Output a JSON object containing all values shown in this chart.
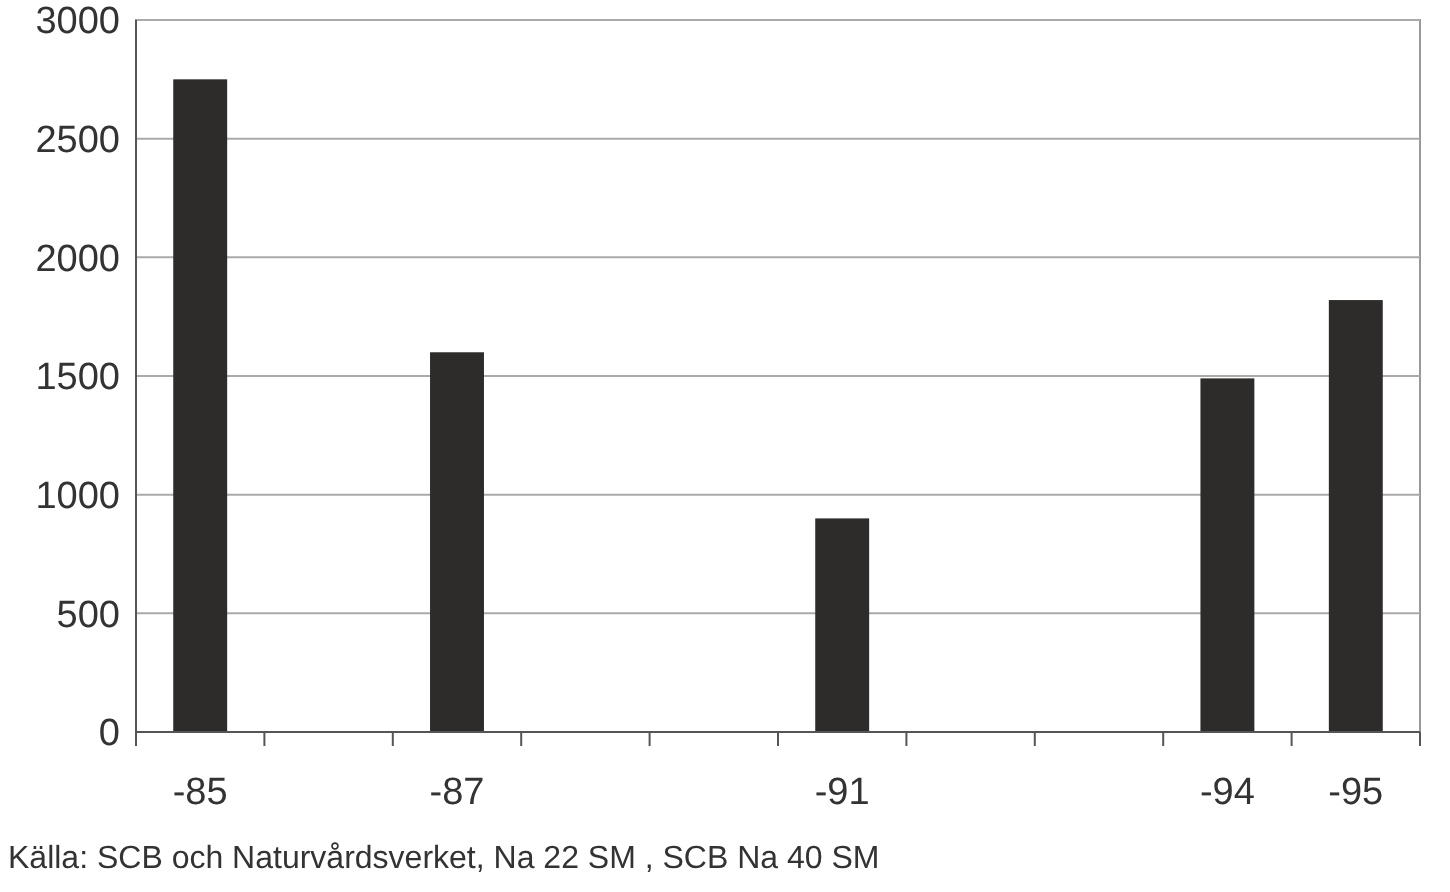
{
  "chart_data": {
    "type": "bar",
    "categories": [
      "-85",
      null,
      "-87",
      null,
      null,
      "-91",
      null,
      null,
      "-94",
      "-95"
    ],
    "values": [
      2750,
      null,
      1600,
      null,
      null,
      900,
      null,
      null,
      1490,
      1820
    ],
    "color": "#2e2b2b",
    "ylim": [
      0,
      3000
    ],
    "yticks": [
      0,
      500,
      1000,
      1500,
      2000,
      2500,
      3000
    ],
    "grid": "y",
    "annotations": [
      "Källa: SCB och Naturvårdsverket, Na 22 SM , SCB Na 40 SM"
    ]
  }
}
